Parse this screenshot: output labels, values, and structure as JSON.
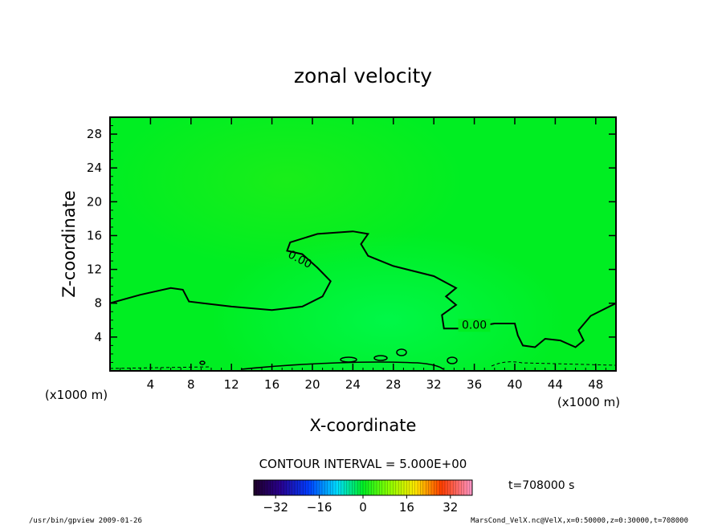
{
  "chart_data": {
    "type": "heatmap",
    "title": "zonal velocity",
    "xlabel": "X-coordinate",
    "ylabel": "Z-coordinate",
    "x_unit_label": "(x1000 m)",
    "z_unit_label": "(x1000 m)",
    "xlim": [
      0,
      50
    ],
    "ylim": [
      0,
      30
    ],
    "x_ticks": [
      4,
      8,
      12,
      16,
      20,
      24,
      28,
      32,
      36,
      40,
      44,
      48
    ],
    "y_ticks": [
      4,
      8,
      12,
      16,
      20,
      24,
      28
    ],
    "background_color": "#00ee22",
    "contour_interval_text": "CONTOUR INTERVAL = 5.000E+00",
    "contour_labels": [
      {
        "text": "0.00",
        "x": 18.6,
        "z": 12.8
      },
      {
        "text": "0.00",
        "x": 36.0,
        "z": 5.0
      }
    ],
    "zero_contour": [
      [
        0,
        8.0
      ],
      [
        3,
        9.0
      ],
      [
        6,
        9.8
      ],
      [
        7.2,
        9.6
      ],
      [
        7.8,
        8.2
      ],
      [
        12,
        7.6
      ],
      [
        16,
        7.2
      ],
      [
        19,
        7.6
      ],
      [
        21,
        8.8
      ],
      [
        21.8,
        10.6
      ],
      [
        20.5,
        12.2
      ],
      [
        19,
        13.8
      ],
      [
        17.5,
        14.2
      ],
      [
        17.8,
        15.2
      ],
      [
        20.5,
        16.2
      ],
      [
        24,
        16.5
      ],
      [
        25.5,
        16.2
      ],
      [
        24.8,
        15.0
      ],
      [
        25.5,
        13.6
      ],
      [
        28,
        12.4
      ],
      [
        32,
        11.2
      ],
      [
        34.2,
        9.8
      ],
      [
        33.2,
        8.8
      ],
      [
        34.2,
        7.8
      ],
      [
        32.8,
        6.6
      ],
      [
        33.0,
        5.0
      ],
      [
        35,
        5.0
      ],
      [
        38,
        5.6
      ],
      [
        40,
        5.6
      ],
      [
        40.3,
        4.2
      ],
      [
        40.8,
        3.0
      ],
      [
        42,
        2.8
      ],
      [
        43,
        3.8
      ],
      [
        44.5,
        3.6
      ],
      [
        46,
        2.8
      ],
      [
        46.8,
        3.6
      ],
      [
        46.3,
        4.8
      ],
      [
        47.5,
        6.5
      ],
      [
        50,
        8.0
      ]
    ],
    "colorbar": {
      "ticks": [
        -32,
        -16,
        0,
        16,
        32
      ],
      "range": [
        -40,
        40
      ]
    },
    "time_label": "t=708000 s"
  },
  "footer": {
    "left": "/usr/bin/gpview   2009-01-26",
    "right": "MarsCond_VelX.nc@VelX,x=0:50000,z=0:30000,t=708000"
  }
}
